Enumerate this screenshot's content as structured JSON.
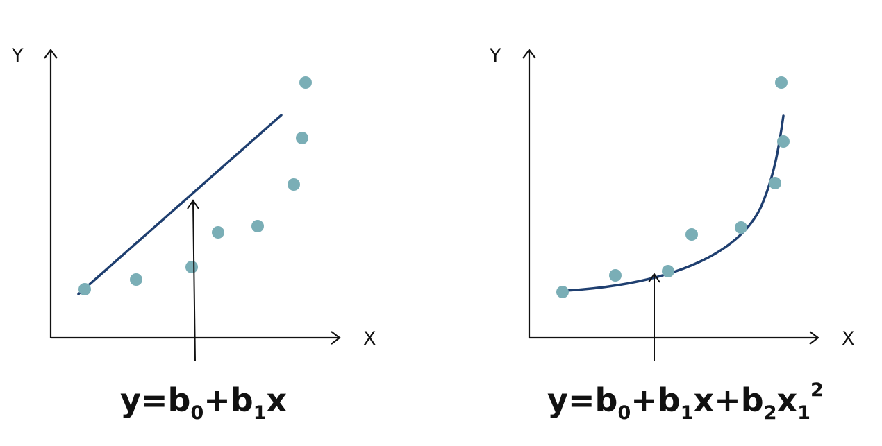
{
  "colors": {
    "point": "#7aaeb6",
    "fit_line": "#1f3f70",
    "axis": "#111111",
    "text": "#111111"
  },
  "panels": [
    {
      "y_axis_label": "Y",
      "x_axis_label": "X",
      "equation": {
        "y": "y=b",
        "s0": "0",
        "p1": "+b",
        "s1": "1",
        "x": "x"
      }
    },
    {
      "y_axis_label": "Y",
      "x_axis_label": "X",
      "equation": {
        "y": "y=b",
        "s0": "0",
        "p1": "+b",
        "s1": "1",
        "x": "x+b",
        "s2": "2",
        "x1": "x",
        "s3": "1",
        "sup": "2"
      }
    }
  ]
}
